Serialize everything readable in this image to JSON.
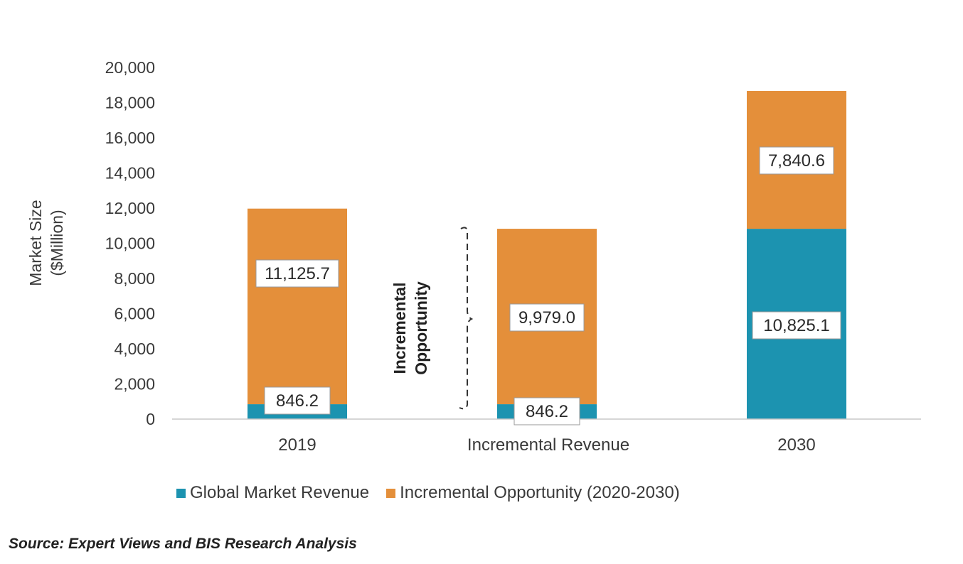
{
  "chart_data": {
    "type": "bar",
    "stacked": true,
    "categories": [
      "2019",
      "Incremental Revenue",
      "2030"
    ],
    "series": [
      {
        "name": "Global Market Revenue",
        "color": "#1c93b0",
        "values": [
          846.2,
          846.2,
          10825.1
        ],
        "labels": [
          "846.2",
          "846.2",
          "10,825.1"
        ]
      },
      {
        "name": "Incremental Opportunity (2020-2030)",
        "color": "#e48f3a",
        "values": [
          11125.7,
          9979.0,
          7840.6
        ],
        "labels": [
          "11,125.7",
          "9,979.0",
          "7,840.6"
        ]
      }
    ],
    "ylabel_line1": "Market Size",
    "ylabel_line2": "($Million)",
    "ylim": [
      0,
      20000
    ],
    "yticks": [
      0,
      2000,
      4000,
      6000,
      8000,
      10000,
      12000,
      14000,
      16000,
      18000,
      20000
    ],
    "ytick_labels": [
      "0",
      "2,000",
      "4,000",
      "6,000",
      "8,000",
      "10,000",
      "12,000",
      "14,000",
      "16,000",
      "18,000",
      "20,000"
    ],
    "annotation_line1": "Incremental",
    "annotation_line2": "Opportunity",
    "legend_position": "bottom",
    "grid": false
  },
  "source": "Source: Expert Views and BIS Research Analysis"
}
